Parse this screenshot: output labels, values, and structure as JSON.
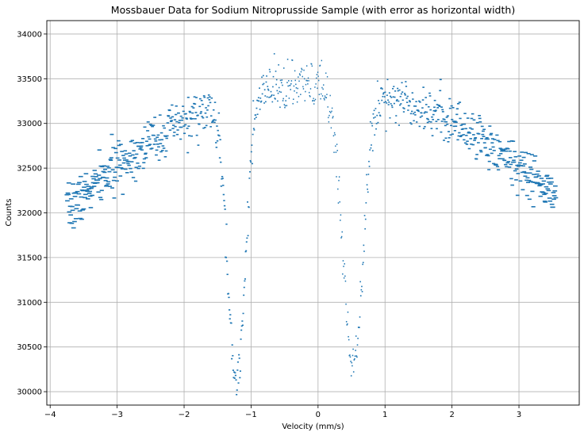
{
  "chart_data": {
    "type": "scatter",
    "title": "Mossbauer Data for Sodium Nitroprusside Sample (with error as horizontal width)",
    "xlabel": "Velocity (mm/s)",
    "ylabel": "Counts",
    "xlim": [
      -4.05,
      3.9
    ],
    "ylim": [
      29850,
      34150
    ],
    "xticks": [
      -4,
      -3,
      -2,
      -1,
      0,
      1,
      2,
      3
    ],
    "yticks": [
      30000,
      30500,
      31000,
      31500,
      32000,
      32500,
      33000,
      33500,
      34000
    ],
    "grid": true,
    "legend": "none",
    "colors": {
      "marker": "#1f77b4",
      "grid": "#b0b0b0",
      "axis": "#000000"
    },
    "x_range": [
      -3.75,
      3.55
    ],
    "n_points": 1024,
    "model": {
      "baseline_center": 0.0,
      "baseline_peak": 33420,
      "baseline_curvature": 50,
      "dips": [
        {
          "center": -1.22,
          "depth": 3150,
          "width": 0.13
        },
        {
          "center": 0.52,
          "depth": 3050,
          "width": 0.15
        }
      ],
      "noise_sd": 130,
      "seed": 7
    }
  }
}
